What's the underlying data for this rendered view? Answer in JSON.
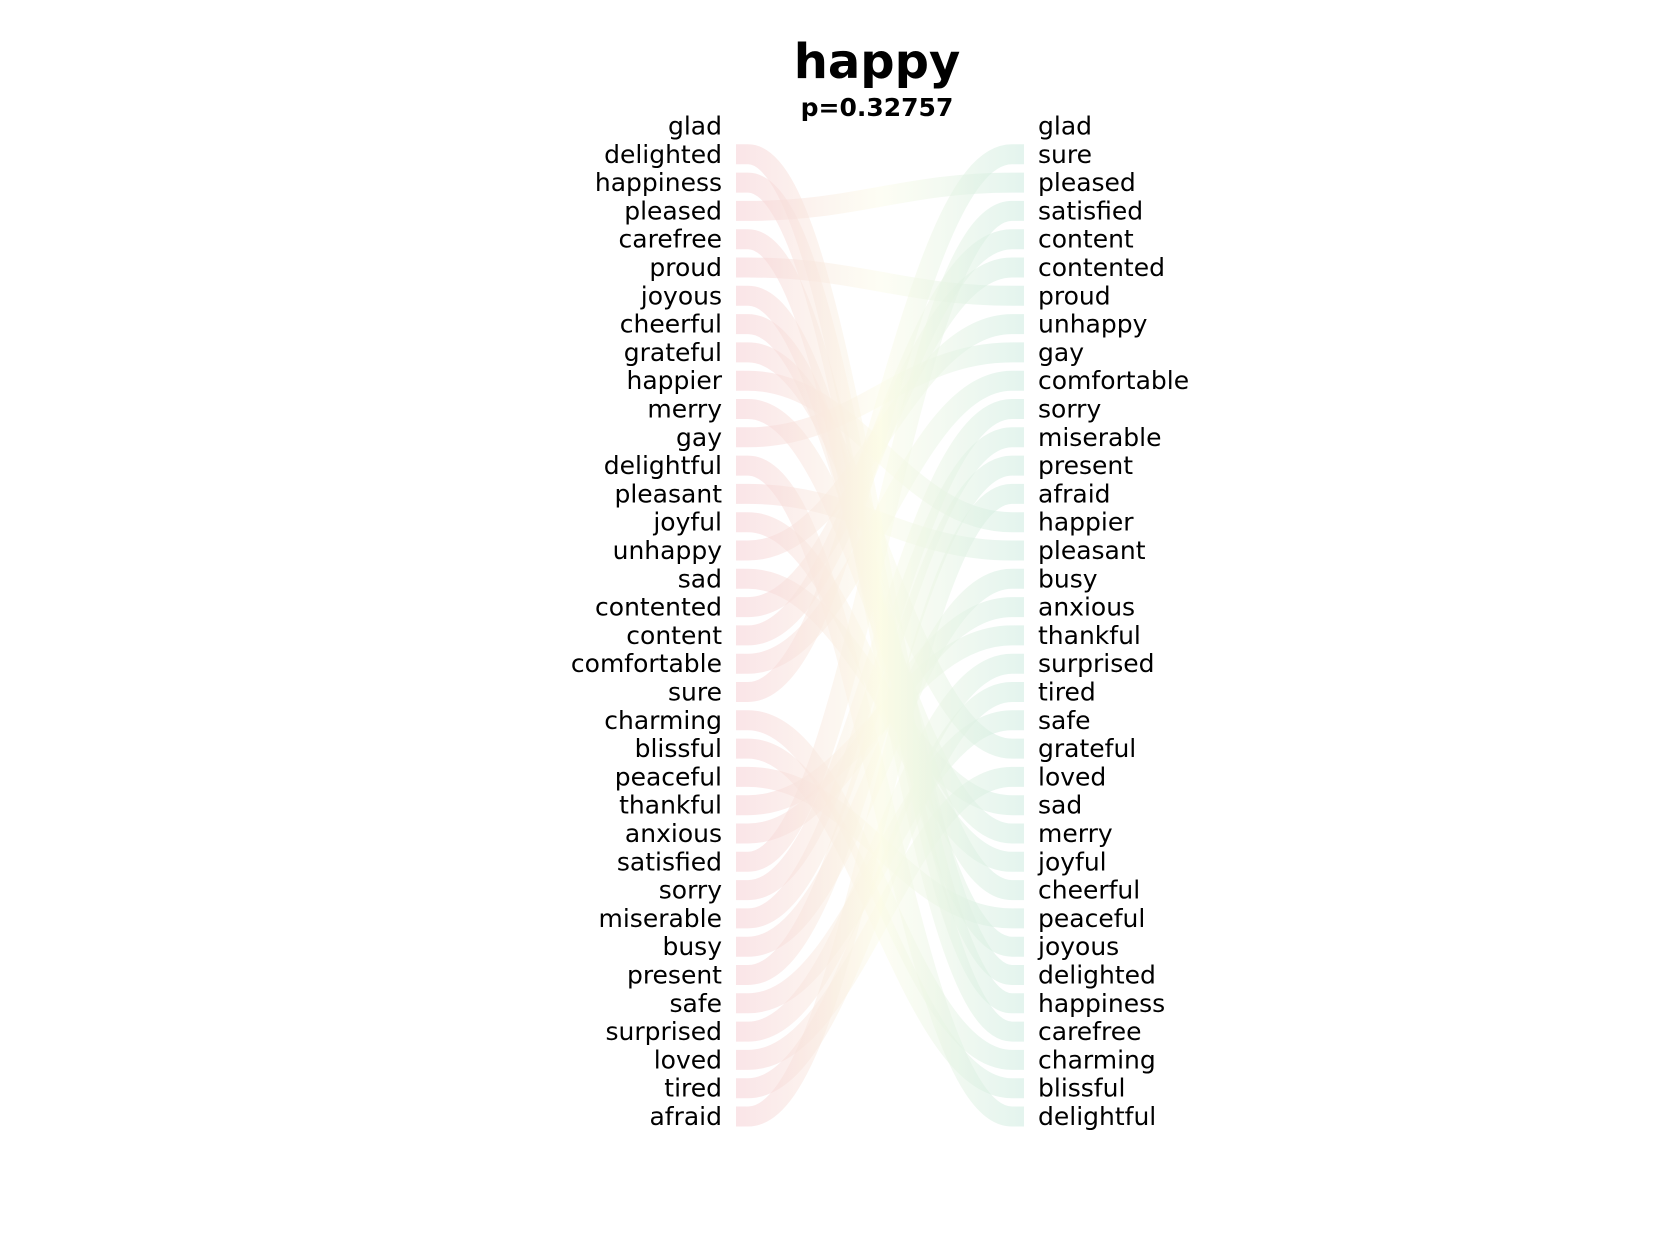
{
  "chart_data": {
    "type": "bump",
    "title": "happy",
    "subtitle": "p=0.32757",
    "left_list": [
      "glad",
      "delighted",
      "happiness",
      "pleased",
      "carefree",
      "proud",
      "joyous",
      "cheerful",
      "grateful",
      "happier",
      "merry",
      "gay",
      "delightful",
      "pleasant",
      "joyful",
      "unhappy",
      "sad",
      "contented",
      "content",
      "comfortable",
      "sure",
      "charming",
      "blissful",
      "peaceful",
      "thankful",
      "anxious",
      "satisfied",
      "sorry",
      "miserable",
      "busy",
      "present",
      "safe",
      "surprised",
      "loved",
      "tired",
      "afraid"
    ],
    "right_list": [
      "glad",
      "sure",
      "pleased",
      "satisfied",
      "content",
      "contented",
      "proud",
      "unhappy",
      "gay",
      "comfortable",
      "sorry",
      "miserable",
      "present",
      "afraid",
      "happier",
      "pleasant",
      "busy",
      "anxious",
      "thankful",
      "surprised",
      "tired",
      "safe",
      "grateful",
      "loved",
      "sad",
      "merry",
      "joyful",
      "cheerful",
      "peaceful",
      "joyous",
      "delighted",
      "happiness",
      "carefree",
      "charming",
      "blissful",
      "delightful"
    ],
    "colors": {
      "up": "#cdebe0",
      "down": "#f6cfd4",
      "mid": "#fbfbe6",
      "text": "#000000"
    }
  }
}
